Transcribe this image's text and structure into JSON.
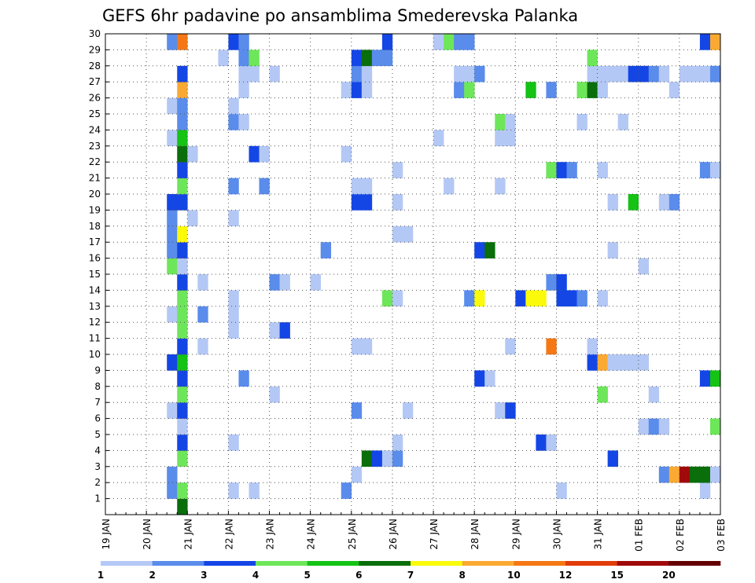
{
  "chart_data": {
    "type": "heatmap",
    "title": "GEFS 6hr padavine po ansamblima Smederevska Palanka",
    "xlabel": "",
    "ylabel": "",
    "x_tick_labels": [
      "19 JAN",
      "20 JAN",
      "21 JAN",
      "22 JAN",
      "23 JAN",
      "24 JAN",
      "25 JAN",
      "26 JAN",
      "27 JAN",
      "28 JAN",
      "29 JAN",
      "30 JAN",
      "31 JAN",
      "01 FEB",
      "02 FEB",
      "03 FEB"
    ],
    "y_tick_labels": [
      "1",
      "2",
      "3",
      "4",
      "5",
      "6",
      "7",
      "8",
      "9",
      "10",
      "11",
      "12",
      "13",
      "14",
      "15",
      "16",
      "17",
      "18",
      "19",
      "20",
      "21",
      "22",
      "23",
      "24",
      "25",
      "26",
      "27",
      "28",
      "29",
      "30"
    ],
    "xlim_days": [
      0,
      15
    ],
    "step_hours": 6,
    "ylim": [
      0,
      30
    ],
    "grid": true,
    "legend_position": "bottom",
    "legend": {
      "colors": [
        "#b4c8f5",
        "#5a8ceb",
        "#1446e6",
        "#6ee65a",
        "#14c314",
        "#0a6e0a",
        "#fafa0a",
        "#faaa32",
        "#f57814",
        "#e13c0a",
        "#a00a0a",
        "#640000"
      ],
      "labels": [
        "1",
        "2",
        "3",
        "4",
        "5",
        "6",
        "7",
        "8",
        "10",
        "12",
        "15",
        "20"
      ]
    },
    "cells": [
      {
        "d": 1.875,
        "m": 0,
        "l": 6
      },
      {
        "d": 1.625,
        "m": 1,
        "l": 2
      },
      {
        "d": 1.875,
        "m": 1,
        "l": 4
      },
      {
        "d": 3.125,
        "m": 1,
        "l": 1
      },
      {
        "d": 3.625,
        "m": 1,
        "l": 1
      },
      {
        "d": 5.875,
        "m": 1,
        "l": 2
      },
      {
        "d": 11.125,
        "m": 1,
        "l": 1
      },
      {
        "d": 14.625,
        "m": 1,
        "l": 1
      },
      {
        "d": 1.625,
        "m": 2,
        "l": 2
      },
      {
        "d": 6.125,
        "m": 2,
        "l": 1
      },
      {
        "d": 13.625,
        "m": 2,
        "l": 2
      },
      {
        "d": 13.875,
        "m": 2,
        "l": 8
      },
      {
        "d": 14.125,
        "m": 2,
        "l": 11
      },
      {
        "d": 14.375,
        "m": 2,
        "l": 6
      },
      {
        "d": 14.625,
        "m": 2,
        "l": 6
      },
      {
        "d": 14.875,
        "m": 2,
        "l": 1
      },
      {
        "d": 1.875,
        "m": 3,
        "l": 4
      },
      {
        "d": 6.375,
        "m": 3,
        "l": 6
      },
      {
        "d": 6.625,
        "m": 3,
        "l": 3
      },
      {
        "d": 6.875,
        "m": 3,
        "l": 1
      },
      {
        "d": 7.125,
        "m": 3,
        "l": 2
      },
      {
        "d": 12.375,
        "m": 3,
        "l": 3
      },
      {
        "d": 1.875,
        "m": 4,
        "l": 3
      },
      {
        "d": 3.125,
        "m": 4,
        "l": 1
      },
      {
        "d": 7.125,
        "m": 4,
        "l": 1
      },
      {
        "d": 10.625,
        "m": 4,
        "l": 3
      },
      {
        "d": 10.875,
        "m": 4,
        "l": 1
      },
      {
        "d": 1.875,
        "m": 5,
        "l": 1
      },
      {
        "d": 13.125,
        "m": 5,
        "l": 1
      },
      {
        "d": 13.375,
        "m": 5,
        "l": 2
      },
      {
        "d": 13.625,
        "m": 5,
        "l": 1
      },
      {
        "d": 14.875,
        "m": 5,
        "l": 4
      },
      {
        "d": 1.625,
        "m": 6,
        "l": 1
      },
      {
        "d": 1.875,
        "m": 6,
        "l": 3
      },
      {
        "d": 6.125,
        "m": 6,
        "l": 2
      },
      {
        "d": 7.375,
        "m": 6,
        "l": 1
      },
      {
        "d": 9.625,
        "m": 6,
        "l": 1
      },
      {
        "d": 9.875,
        "m": 6,
        "l": 3
      },
      {
        "d": 1.875,
        "m": 7,
        "l": 4
      },
      {
        "d": 4.125,
        "m": 7,
        "l": 1
      },
      {
        "d": 12.125,
        "m": 7,
        "l": 4
      },
      {
        "d": 13.375,
        "m": 7,
        "l": 1
      },
      {
        "d": 1.875,
        "m": 8,
        "l": 3
      },
      {
        "d": 3.375,
        "m": 8,
        "l": 2
      },
      {
        "d": 9.125,
        "m": 8,
        "l": 3
      },
      {
        "d": 9.375,
        "m": 8,
        "l": 1
      },
      {
        "d": 14.625,
        "m": 8,
        "l": 3
      },
      {
        "d": 14.875,
        "m": 8,
        "l": 5
      },
      {
        "d": 1.625,
        "m": 9,
        "l": 3
      },
      {
        "d": 1.875,
        "m": 9,
        "l": 5
      },
      {
        "d": 11.875,
        "m": 9,
        "l": 3
      },
      {
        "d": 12.125,
        "m": 9,
        "l": 8
      },
      {
        "d": 12.375,
        "m": 9,
        "l": 1
      },
      {
        "d": 12.625,
        "m": 9,
        "l": 1
      },
      {
        "d": 12.875,
        "m": 9,
        "l": 1
      },
      {
        "d": 13.125,
        "m": 9,
        "l": 1
      },
      {
        "d": 1.875,
        "m": 10,
        "l": 3
      },
      {
        "d": 2.375,
        "m": 10,
        "l": 1
      },
      {
        "d": 6.125,
        "m": 10,
        "l": 1
      },
      {
        "d": 6.375,
        "m": 10,
        "l": 1
      },
      {
        "d": 9.875,
        "m": 10,
        "l": 1
      },
      {
        "d": 10.875,
        "m": 10,
        "l": 9
      },
      {
        "d": 11.875,
        "m": 10,
        "l": 1
      },
      {
        "d": 1.875,
        "m": 11,
        "l": 4
      },
      {
        "d": 3.125,
        "m": 11,
        "l": 1
      },
      {
        "d": 4.125,
        "m": 11,
        "l": 1
      },
      {
        "d": 4.375,
        "m": 11,
        "l": 3
      },
      {
        "d": 1.625,
        "m": 12,
        "l": 1
      },
      {
        "d": 1.875,
        "m": 12,
        "l": 4
      },
      {
        "d": 2.375,
        "m": 12,
        "l": 2
      },
      {
        "d": 3.125,
        "m": 12,
        "l": 1
      },
      {
        "d": 1.875,
        "m": 13,
        "l": 4
      },
      {
        "d": 3.125,
        "m": 13,
        "l": 1
      },
      {
        "d": 6.875,
        "m": 13,
        "l": 4
      },
      {
        "d": 7.125,
        "m": 13,
        "l": 1
      },
      {
        "d": 8.875,
        "m": 13,
        "l": 2
      },
      {
        "d": 9.125,
        "m": 13,
        "l": 7
      },
      {
        "d": 10.125,
        "m": 13,
        "l": 3
      },
      {
        "d": 10.375,
        "m": 13,
        "l": 7
      },
      {
        "d": 10.625,
        "m": 13,
        "l": 7
      },
      {
        "d": 11.125,
        "m": 13,
        "l": 3
      },
      {
        "d": 11.375,
        "m": 13,
        "l": 3
      },
      {
        "d": 11.625,
        "m": 13,
        "l": 2
      },
      {
        "d": 12.125,
        "m": 13,
        "l": 1
      },
      {
        "d": 1.875,
        "m": 14,
        "l": 3
      },
      {
        "d": 2.375,
        "m": 14,
        "l": 1
      },
      {
        "d": 4.125,
        "m": 14,
        "l": 2
      },
      {
        "d": 4.375,
        "m": 14,
        "l": 1
      },
      {
        "d": 5.125,
        "m": 14,
        "l": 1
      },
      {
        "d": 10.875,
        "m": 14,
        "l": 2
      },
      {
        "d": 11.125,
        "m": 14,
        "l": 3
      },
      {
        "d": 1.625,
        "m": 15,
        "l": 4
      },
      {
        "d": 1.875,
        "m": 15,
        "l": 1
      },
      {
        "d": 13.125,
        "m": 15,
        "l": 1
      },
      {
        "d": 1.625,
        "m": 16,
        "l": 2
      },
      {
        "d": 1.875,
        "m": 16,
        "l": 3
      },
      {
        "d": 5.375,
        "m": 16,
        "l": 2
      },
      {
        "d": 9.125,
        "m": 16,
        "l": 3
      },
      {
        "d": 9.375,
        "m": 16,
        "l": 6
      },
      {
        "d": 12.375,
        "m": 16,
        "l": 1
      },
      {
        "d": 1.625,
        "m": 17,
        "l": 2
      },
      {
        "d": 1.875,
        "m": 17,
        "l": 7
      },
      {
        "d": 7.125,
        "m": 17,
        "l": 1
      },
      {
        "d": 7.375,
        "m": 17,
        "l": 1
      },
      {
        "d": 1.625,
        "m": 18,
        "l": 2
      },
      {
        "d": 2.125,
        "m": 18,
        "l": 1
      },
      {
        "d": 3.125,
        "m": 18,
        "l": 1
      },
      {
        "d": 1.625,
        "m": 19,
        "l": 3
      },
      {
        "d": 1.875,
        "m": 19,
        "l": 3
      },
      {
        "d": 6.125,
        "m": 19,
        "l": 3
      },
      {
        "d": 6.375,
        "m": 19,
        "l": 3
      },
      {
        "d": 7.125,
        "m": 19,
        "l": 1
      },
      {
        "d": 12.375,
        "m": 19,
        "l": 1
      },
      {
        "d": 12.875,
        "m": 19,
        "l": 5
      },
      {
        "d": 13.625,
        "m": 19,
        "l": 1
      },
      {
        "d": 13.875,
        "m": 19,
        "l": 2
      },
      {
        "d": 1.875,
        "m": 20,
        "l": 4
      },
      {
        "d": 3.125,
        "m": 20,
        "l": 2
      },
      {
        "d": 3.875,
        "m": 20,
        "l": 2
      },
      {
        "d": 6.125,
        "m": 20,
        "l": 1
      },
      {
        "d": 6.375,
        "m": 20,
        "l": 1
      },
      {
        "d": 8.375,
        "m": 20,
        "l": 1
      },
      {
        "d": 9.625,
        "m": 20,
        "l": 1
      },
      {
        "d": 1.875,
        "m": 21,
        "l": 3
      },
      {
        "d": 7.125,
        "m": 21,
        "l": 1
      },
      {
        "d": 10.875,
        "m": 21,
        "l": 4
      },
      {
        "d": 11.125,
        "m": 21,
        "l": 3
      },
      {
        "d": 11.375,
        "m": 21,
        "l": 2
      },
      {
        "d": 12.125,
        "m": 21,
        "l": 1
      },
      {
        "d": 14.625,
        "m": 21,
        "l": 2
      },
      {
        "d": 14.875,
        "m": 21,
        "l": 1
      },
      {
        "d": 1.875,
        "m": 22,
        "l": 6
      },
      {
        "d": 2.125,
        "m": 22,
        "l": 1
      },
      {
        "d": 3.625,
        "m": 22,
        "l": 3
      },
      {
        "d": 3.875,
        "m": 22,
        "l": 1
      },
      {
        "d": 5.875,
        "m": 22,
        "l": 1
      },
      {
        "d": 1.625,
        "m": 23,
        "l": 1
      },
      {
        "d": 1.875,
        "m": 23,
        "l": 5
      },
      {
        "d": 8.125,
        "m": 23,
        "l": 1
      },
      {
        "d": 9.625,
        "m": 23,
        "l": 1
      },
      {
        "d": 9.875,
        "m": 23,
        "l": 1
      },
      {
        "d": 1.875,
        "m": 24,
        "l": 2
      },
      {
        "d": 3.125,
        "m": 24,
        "l": 2
      },
      {
        "d": 3.375,
        "m": 24,
        "l": 1
      },
      {
        "d": 9.625,
        "m": 24,
        "l": 4
      },
      {
        "d": 9.875,
        "m": 24,
        "l": 1
      },
      {
        "d": 11.625,
        "m": 24,
        "l": 1
      },
      {
        "d": 12.625,
        "m": 24,
        "l": 1
      },
      {
        "d": 1.625,
        "m": 25,
        "l": 1
      },
      {
        "d": 1.875,
        "m": 25,
        "l": 2
      },
      {
        "d": 3.125,
        "m": 25,
        "l": 1
      },
      {
        "d": 1.875,
        "m": 26,
        "l": 8
      },
      {
        "d": 3.375,
        "m": 26,
        "l": 1
      },
      {
        "d": 5.875,
        "m": 26,
        "l": 1
      },
      {
        "d": 6.125,
        "m": 26,
        "l": 3
      },
      {
        "d": 6.375,
        "m": 26,
        "l": 1
      },
      {
        "d": 8.625,
        "m": 26,
        "l": 2
      },
      {
        "d": 8.875,
        "m": 26,
        "l": 4
      },
      {
        "d": 10.375,
        "m": 26,
        "l": 5
      },
      {
        "d": 10.875,
        "m": 26,
        "l": 2
      },
      {
        "d": 11.625,
        "m": 26,
        "l": 4
      },
      {
        "d": 11.875,
        "m": 26,
        "l": 6
      },
      {
        "d": 12.125,
        "m": 26,
        "l": 1
      },
      {
        "d": 13.875,
        "m": 26,
        "l": 1
      },
      {
        "d": 1.875,
        "m": 27,
        "l": 3
      },
      {
        "d": 3.375,
        "m": 27,
        "l": 1
      },
      {
        "d": 3.625,
        "m": 27,
        "l": 1
      },
      {
        "d": 4.125,
        "m": 27,
        "l": 1
      },
      {
        "d": 6.125,
        "m": 27,
        "l": 2
      },
      {
        "d": 6.375,
        "m": 27,
        "l": 1
      },
      {
        "d": 8.625,
        "m": 27,
        "l": 1
      },
      {
        "d": 8.875,
        "m": 27,
        "l": 1
      },
      {
        "d": 9.125,
        "m": 27,
        "l": 2
      },
      {
        "d": 11.875,
        "m": 27,
        "l": 1
      },
      {
        "d": 12.125,
        "m": 27,
        "l": 1
      },
      {
        "d": 12.375,
        "m": 27,
        "l": 1
      },
      {
        "d": 12.625,
        "m": 27,
        "l": 1
      },
      {
        "d": 12.875,
        "m": 27,
        "l": 3
      },
      {
        "d": 13.125,
        "m": 27,
        "l": 3
      },
      {
        "d": 13.375,
        "m": 27,
        "l": 2
      },
      {
        "d": 13.625,
        "m": 27,
        "l": 1
      },
      {
        "d": 14.125,
        "m": 27,
        "l": 1
      },
      {
        "d": 14.375,
        "m": 27,
        "l": 1
      },
      {
        "d": 14.625,
        "m": 27,
        "l": 1
      },
      {
        "d": 14.875,
        "m": 27,
        "l": 2
      },
      {
        "d": 2.875,
        "m": 28,
        "l": 1
      },
      {
        "d": 3.375,
        "m": 28,
        "l": 2
      },
      {
        "d": 3.625,
        "m": 28,
        "l": 4
      },
      {
        "d": 6.125,
        "m": 28,
        "l": 3
      },
      {
        "d": 6.375,
        "m": 28,
        "l": 6
      },
      {
        "d": 6.625,
        "m": 28,
        "l": 2
      },
      {
        "d": 6.875,
        "m": 28,
        "l": 2
      },
      {
        "d": 11.875,
        "m": 28,
        "l": 4
      },
      {
        "d": 1.625,
        "m": 29,
        "l": 2
      },
      {
        "d": 1.875,
        "m": 29,
        "l": 9
      },
      {
        "d": 3.125,
        "m": 29,
        "l": 3
      },
      {
        "d": 3.375,
        "m": 29,
        "l": 2
      },
      {
        "d": 6.875,
        "m": 29,
        "l": 3
      },
      {
        "d": 8.125,
        "m": 29,
        "l": 1
      },
      {
        "d": 8.375,
        "m": 29,
        "l": 4
      },
      {
        "d": 8.625,
        "m": 29,
        "l": 2
      },
      {
        "d": 8.875,
        "m": 29,
        "l": 2
      },
      {
        "d": 14.625,
        "m": 29,
        "l": 3
      },
      {
        "d": 14.875,
        "m": 29,
        "l": 8
      }
    ]
  }
}
